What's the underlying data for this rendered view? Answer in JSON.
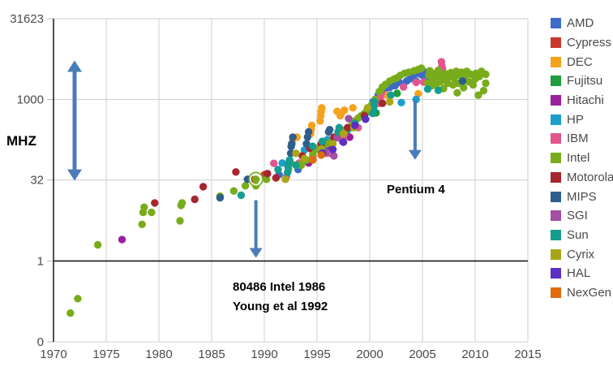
{
  "y_axis": {
    "unit_label": "MHZ",
    "ticks": [
      {
        "label": "31623",
        "value": 31623
      },
      {
        "label": "1000",
        "value": 1000
      },
      {
        "label": "32",
        "value": 32
      },
      {
        "label": "1",
        "value": 1
      },
      {
        "label": "0",
        "value": 0.0316
      }
    ]
  },
  "x_axis": {
    "ticks": [
      1970,
      1975,
      1980,
      1985,
      1990,
      1995,
      2000,
      2005,
      2010,
      2015
    ]
  },
  "annotations": {
    "pentium": {
      "text": "Pentium 4",
      "arrow": {
        "x_year": 2004.3,
        "from_mhz": 980,
        "to_mhz": 76
      }
    },
    "i486": {
      "line1": "80486 Intel 1986",
      "line2": "Young et al 1992",
      "arrow": {
        "x_year": 1989.2,
        "from_mhz": 13.5,
        "to_mhz": 1.15
      }
    },
    "range_arrow": {
      "x_year": 1972,
      "from_mhz": 5300,
      "to_mhz": 31
    }
  },
  "highlight": {
    "series": "Intel",
    "year": 1989.2,
    "mhz": 33
  },
  "colors": {
    "arrow": "#4A7CB8",
    "grid": "#CFCFCF",
    "axis": "#262626",
    "baseline": "#1A1A1A",
    "tick_text": "#4A4A4A"
  },
  "chart_data": {
    "type": "scatter",
    "title": "",
    "xlabel": "",
    "ylabel": "MHZ",
    "x_range": [
      1970,
      2015
    ],
    "y_scale": "log",
    "y_range": [
      0.0316,
      31623
    ],
    "grid": true,
    "legend_position": "right",
    "series": [
      {
        "name": "AMD",
        "color": "#3E6BC7",
        "points": [
          [
            1991.4,
            40
          ],
          [
            1993.2,
            50
          ],
          [
            1994.5,
            75
          ],
          [
            1995.9,
            117
          ],
          [
            1996.8,
            200
          ],
          [
            1997.7,
            266
          ],
          [
            1998.6,
            350
          ],
          [
            1999.3,
            500
          ],
          [
            1999.8,
            700
          ],
          [
            2000.3,
            900
          ],
          [
            2000.8,
            1200
          ],
          [
            2001.4,
            1400
          ],
          [
            2001.9,
            1670
          ],
          [
            2002.4,
            1800
          ],
          [
            2002.8,
            2080
          ],
          [
            2003.2,
            1900
          ],
          [
            2003.5,
            2200
          ],
          [
            2003.8,
            2400
          ],
          [
            2004.1,
            2600
          ],
          [
            2004.4,
            2200
          ],
          [
            2004.7,
            3000
          ],
          [
            2005.0,
            2800
          ],
          [
            2005.3,
            3200
          ],
          [
            2005.6,
            2600
          ]
        ]
      },
      {
        "name": "Cypress",
        "color": "#C8392B",
        "points": [
          [
            1988.8,
            33
          ],
          [
            1990.0,
            40
          ]
        ]
      },
      {
        "name": "DEC",
        "color": "#F5A21D",
        "points": [
          [
            1992.6,
            150
          ],
          [
            1992.7,
            180
          ],
          [
            1993.1,
            200
          ],
          [
            1994.4,
            233
          ],
          [
            1994.45,
            275
          ],
          [
            1994.5,
            330
          ],
          [
            1995.3,
            400
          ],
          [
            1995.35,
            500
          ],
          [
            1995.4,
            600
          ],
          [
            1995.45,
            700
          ],
          [
            1996.9,
            600
          ],
          [
            1997.2,
            500
          ],
          [
            1997.35,
            567
          ],
          [
            1997.6,
            633
          ],
          [
            1998.4,
            700
          ],
          [
            2001.6,
            1200
          ],
          [
            2004.6,
            1280
          ]
        ]
      },
      {
        "name": "Fujitsu",
        "color": "#1F9E3E",
        "points": [
          [
            1995.2,
            118
          ],
          [
            1997.8,
            250
          ],
          [
            2000.6,
            563
          ],
          [
            2002.6,
            1300
          ],
          [
            2005.8,
            2160
          ]
        ]
      },
      {
        "name": "Hitachi",
        "color": "#99219B",
        "points": [
          [
            1976.5,
            2.5
          ],
          [
            1994.2,
            66
          ],
          [
            1996.3,
            133
          ],
          [
            1998.1,
            200
          ]
        ]
      },
      {
        "name": "HP",
        "color": "#1C9FCB",
        "points": [
          [
            1991.7,
            66
          ],
          [
            1993.8,
            115
          ],
          [
            1996.0,
            180
          ],
          [
            1997.5,
            236
          ],
          [
            1998.2,
            300
          ],
          [
            1999.9,
            590
          ],
          [
            2000.1,
            740
          ],
          [
            2003.0,
            875
          ],
          [
            2004.4,
            1000
          ]
        ]
      },
      {
        "name": "IBM",
        "color": "#E2568E",
        "points": [
          [
            1990.9,
            65
          ],
          [
            1992.1,
            37
          ],
          [
            1993.3,
            66
          ],
          [
            1994.6,
            88
          ],
          [
            1996.2,
            100
          ],
          [
            1997.4,
            166
          ],
          [
            1997.5,
            200
          ],
          [
            1997.6,
            233
          ],
          [
            1998.9,
            300
          ],
          [
            2000.9,
            850
          ],
          [
            2001.0,
            1100
          ],
          [
            2001.1,
            1300
          ],
          [
            2003.2,
            1700
          ],
          [
            2004.4,
            2080
          ],
          [
            2005.1,
            2100
          ],
          [
            2006.8,
            5000
          ],
          [
            2006.85,
            4200
          ],
          [
            2006.9,
            3700
          ]
        ]
      },
      {
        "name": "Intel",
        "color": "#79AC1C",
        "points": [
          [
            1971.6,
            0.108
          ],
          [
            1972.3,
            0.2
          ],
          [
            1974.2,
            2
          ],
          [
            1978.4,
            4.8
          ],
          [
            1978.5,
            8
          ],
          [
            1978.6,
            10
          ],
          [
            1979.3,
            8
          ],
          [
            1982.0,
            5.6
          ],
          [
            1982.1,
            10.8
          ],
          [
            1982.2,
            12
          ],
          [
            1985.8,
            16
          ],
          [
            1987.1,
            20
          ],
          [
            1988.2,
            25
          ],
          [
            1989.2,
            25
          ],
          [
            1989.2,
            33
          ],
          [
            1990.2,
            33
          ],
          [
            1992.3,
            50
          ],
          [
            1992.5,
            66
          ],
          [
            1993.5,
            60
          ],
          [
            1993.6,
            66
          ],
          [
            1994.0,
            75
          ],
          [
            1994.6,
            100
          ],
          [
            1994.8,
            120
          ],
          [
            1995.3,
            133
          ],
          [
            1995.9,
            150
          ],
          [
            1996.4,
            166
          ],
          [
            1996.8,
            200
          ],
          [
            1997.3,
            233
          ],
          [
            1997.5,
            266
          ],
          [
            1997.9,
            300
          ],
          [
            1998.3,
            333
          ],
          [
            1998.6,
            400
          ],
          [
            1998.9,
            450
          ],
          [
            1999.2,
            500
          ],
          [
            1999.5,
            550
          ],
          [
            1999.7,
            600
          ],
          [
            1999.9,
            667
          ],
          [
            2000.2,
            800
          ],
          [
            2000.5,
            1000
          ],
          [
            2000.9,
            1400
          ],
          [
            2001.2,
            1700
          ],
          [
            2001.5,
            1900
          ],
          [
            2001.9,
            2200
          ],
          [
            2002.3,
            2400
          ],
          [
            2002.6,
            2530
          ],
          [
            2002.9,
            2800
          ],
          [
            2003.3,
            3060
          ],
          [
            2003.7,
            3200
          ],
          [
            2004.2,
            3400
          ],
          [
            2004.6,
            3600
          ],
          [
            2004.9,
            3800
          ],
          [
            2005.5,
            2000
          ],
          [
            2005.6,
            2800
          ],
          [
            2005.7,
            3400
          ],
          [
            2005.9,
            1800
          ],
          [
            2006.0,
            2400
          ],
          [
            2006.1,
            3000
          ],
          [
            2006.3,
            1900
          ],
          [
            2006.4,
            2660
          ],
          [
            2006.5,
            3460
          ],
          [
            2006.7,
            2130
          ],
          [
            2006.8,
            2930
          ],
          [
            2007.0,
            1600
          ],
          [
            2007.1,
            2400
          ],
          [
            2007.2,
            3000
          ],
          [
            2007.4,
            2000
          ],
          [
            2007.5,
            2600
          ],
          [
            2007.7,
            3160
          ],
          [
            2007.9,
            1860
          ],
          [
            2008.0,
            2500
          ],
          [
            2008.2,
            3330
          ],
          [
            2008.3,
            1330
          ],
          [
            2008.4,
            2000
          ],
          [
            2008.5,
            2830
          ],
          [
            2008.7,
            3200
          ],
          [
            2008.9,
            1660
          ],
          [
            2009.0,
            2660
          ],
          [
            2009.2,
            3330
          ],
          [
            2009.4,
            2130
          ],
          [
            2009.6,
            2930
          ],
          [
            2009.8,
            1860
          ],
          [
            2010.0,
            2400
          ],
          [
            2010.1,
            3060
          ],
          [
            2010.3,
            1200
          ],
          [
            2010.4,
            2660
          ],
          [
            2010.6,
            3330
          ],
          [
            2010.8,
            1460
          ],
          [
            2011.0,
            2930
          ],
          [
            2011.0,
            2000
          ]
        ]
      },
      {
        "name": "Motorola",
        "color": "#A6262E",
        "points": [
          [
            1979.6,
            12
          ],
          [
            1983.4,
            14
          ],
          [
            1984.2,
            24
          ],
          [
            1987.3,
            45
          ],
          [
            1990.3,
            42
          ],
          [
            1991.1,
            35
          ],
          [
            1993.6,
            90
          ],
          [
            1994.3,
            125
          ],
          [
            1995.4,
            150
          ],
          [
            1996.6,
            200
          ],
          [
            1997.9,
            300
          ],
          [
            1999.5,
            500
          ],
          [
            2001.2,
            850
          ]
        ]
      },
      {
        "name": "MIPS",
        "color": "#2E5E8C",
        "points": [
          [
            1985.8,
            15
          ],
          [
            1988.4,
            33
          ],
          [
            1992.5,
            100
          ],
          [
            1992.55,
            134
          ],
          [
            1992.6,
            150
          ],
          [
            1992.7,
            200
          ],
          [
            1994.0,
            150
          ],
          [
            1994.1,
            200
          ],
          [
            1994.2,
            250
          ],
          [
            1996.1,
            250
          ],
          [
            1996.2,
            275
          ],
          [
            2008.8,
            2200
          ]
        ]
      },
      {
        "name": "SGI",
        "color": "#A34FA3",
        "points": [
          [
            1995.8,
            100
          ],
          [
            1996.6,
            90
          ],
          [
            1996.9,
            195
          ],
          [
            1998.0,
            440
          ]
        ]
      },
      {
        "name": "Sun",
        "color": "#169C90",
        "points": [
          [
            1987.8,
            16.7
          ],
          [
            1991.3,
            50
          ],
          [
            1992.2,
            44
          ],
          [
            1992.25,
            55
          ],
          [
            1992.3,
            66
          ],
          [
            1992.4,
            75
          ],
          [
            1993.0,
            60
          ],
          [
            1994.6,
            135
          ],
          [
            1995.5,
            167
          ],
          [
            1997.0,
            250
          ],
          [
            1997.1,
            300
          ],
          [
            1998.6,
            360
          ],
          [
            2000.3,
            550
          ],
          [
            2000.35,
            650
          ],
          [
            2000.4,
            750
          ],
          [
            2000.45,
            900
          ],
          [
            2002.0,
            1200
          ],
          [
            2005.5,
            1560
          ],
          [
            2006.5,
            1480
          ]
        ]
      },
      {
        "name": "Cyrix",
        "color": "#A8A618",
        "points": [
          [
            1992.0,
            33
          ],
          [
            1993.0,
            100
          ],
          [
            1993.8,
            80
          ],
          [
            1995.4,
            120
          ],
          [
            1996.5,
            150
          ],
          [
            1997.5,
            233
          ],
          [
            1998.5,
            300
          ],
          [
            1999.8,
            700
          ],
          [
            2001.9,
            900
          ]
        ]
      },
      {
        "name": "HAL",
        "color": "#5B2EC4",
        "points": [
          [
            1995.5,
            101
          ],
          [
            1996.5,
            118
          ],
          [
            1997.5,
            161
          ],
          [
            1998.6,
            330
          ],
          [
            1999.6,
            430
          ]
        ]
      },
      {
        "name": "NexGen",
        "color": "#E26B0A",
        "points": [
          [
            1994.6,
            75
          ],
          [
            1995.4,
            93
          ]
        ]
      }
    ]
  }
}
